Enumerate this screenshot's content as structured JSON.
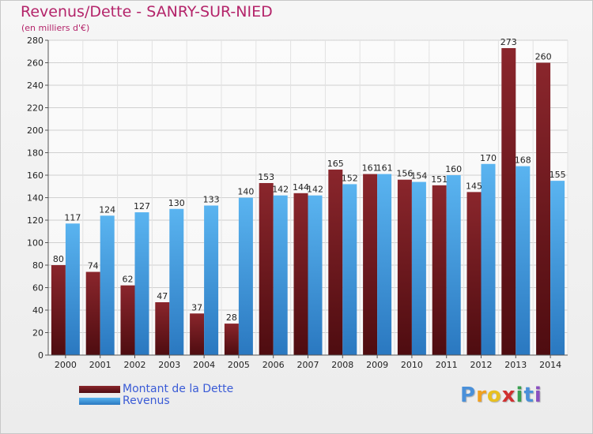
{
  "header": {
    "title": "Revenus/Dette - SANRY-SUR-NIED",
    "subtitle": "(en milliers d'€)"
  },
  "colors": {
    "dette": "#7a1c22",
    "revenus": "#3e9be0",
    "label_text": "#3a5bd6"
  },
  "legend": {
    "dette_label": "Montant de la Dette",
    "revenus_label": "Revenus"
  },
  "logo": {
    "text": "Proxiti",
    "letters": [
      "P",
      "r",
      "o",
      "x",
      "i",
      "t",
      "i"
    ]
  },
  "chart_data": {
    "type": "bar",
    "title": "Revenus/Dette - SANRY-SUR-NIED",
    "ylabel": "(en milliers d'€)",
    "categories": [
      "2000",
      "2001",
      "2002",
      "2003",
      "2004",
      "2005",
      "2006",
      "2007",
      "2008",
      "2009",
      "2010",
      "2011",
      "2012",
      "2013",
      "2014"
    ],
    "series": [
      {
        "name": "Montant de la Dette",
        "values": [
          80,
          74,
          62,
          47,
          37,
          28,
          153,
          144,
          165,
          161,
          156,
          151,
          145,
          273,
          260
        ]
      },
      {
        "name": "Revenus",
        "values": [
          117,
          124,
          127,
          130,
          133,
          140,
          142,
          142,
          152,
          161,
          154,
          160,
          170,
          168,
          155
        ]
      }
    ],
    "yticks": [
      0,
      20,
      40,
      60,
      80,
      100,
      120,
      140,
      160,
      180,
      200,
      220,
      240,
      260,
      280
    ],
    "ylim": [
      0,
      280
    ],
    "grid": true,
    "legend_position": "bottom-left"
  }
}
